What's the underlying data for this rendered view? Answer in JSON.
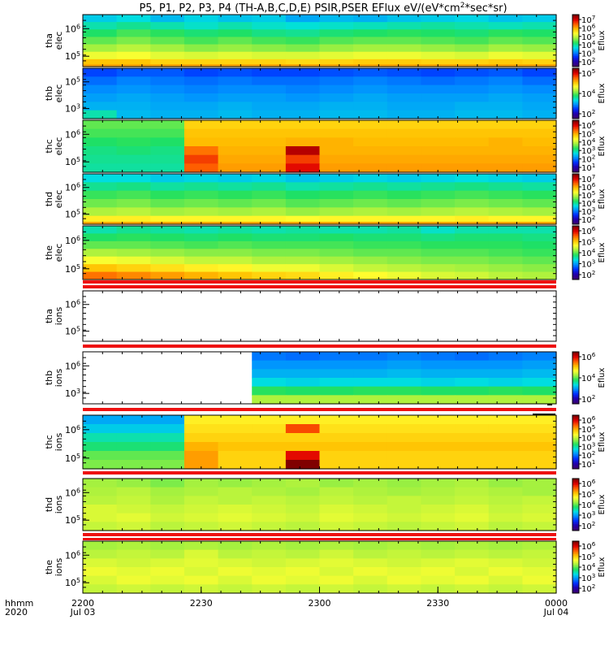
{
  "title": "P5, P1, P2, P3, P4 (TH-A,B,C,D,E) PSIR,PSER EFlux eV/(eV*cm",
  "title_sup": "2",
  "title_end": "*sec*sr)",
  "time_axis": {
    "corner_top": "hhmm",
    "corner_bottom": "2020",
    "ticks": [
      {
        "label": "2200",
        "date": "Jul 03"
      },
      {
        "label": "2230",
        "date": ""
      },
      {
        "label": "2300",
        "date": ""
      },
      {
        "label": "2330",
        "date": ""
      },
      {
        "label": "0000",
        "date": "Jul 04"
      }
    ]
  },
  "colorbar_label": "Eflux",
  "colors": {
    "red_band": "#ee1111",
    "colormap": [
      "#3a0070",
      "#2000b0",
      "#0030ff",
      "#0090ff",
      "#00e0e0",
      "#20e060",
      "#a0f040",
      "#ffff30",
      "#ffc000",
      "#ff6000",
      "#e00000",
      "#800000"
    ]
  },
  "chart_data": {
    "type": "heatmap",
    "x_range": [
      "2200",
      "0000"
    ],
    "panels": [
      {
        "name": "tha elec",
        "label1": "tha",
        "label2": "elec",
        "yticks": [
          "10^6",
          "10^5"
        ],
        "cbar_ticks": [
          "10^7",
          "10^6",
          "10^5",
          "10^4",
          "10^3",
          "10^2"
        ],
        "rows": [
          [
            0.34,
            0.36,
            0.32,
            0.35,
            0.33,
            0.34,
            0.3,
            0.32,
            0.31,
            0.33,
            0.34,
            0.35,
            0.33,
            0.34
          ],
          [
            0.4,
            0.42,
            0.4,
            0.38,
            0.4,
            0.38,
            0.37,
            0.38,
            0.39,
            0.4,
            0.41,
            0.4,
            0.39,
            0.4
          ],
          [
            0.45,
            0.48,
            0.46,
            0.44,
            0.45,
            0.43,
            0.42,
            0.44,
            0.45,
            0.46,
            0.45,
            0.44,
            0.46,
            0.45
          ],
          [
            0.5,
            0.52,
            0.5,
            0.48,
            0.5,
            0.48,
            0.47,
            0.49,
            0.5,
            0.5,
            0.49,
            0.48,
            0.5,
            0.49
          ],
          [
            0.55,
            0.57,
            0.55,
            0.53,
            0.54,
            0.53,
            0.52,
            0.54,
            0.55,
            0.55,
            0.54,
            0.53,
            0.55,
            0.54
          ],
          [
            0.62,
            0.63,
            0.61,
            0.6,
            0.61,
            0.6,
            0.6,
            0.61,
            0.62,
            0.62,
            0.61,
            0.6,
            0.62,
            0.61
          ],
          [
            0.72,
            0.72,
            0.7,
            0.7,
            0.7,
            0.7,
            0.69,
            0.7,
            0.71,
            0.71,
            0.7,
            0.7,
            0.71,
            0.7
          ]
        ],
        "bottom_line": 0.75
      },
      {
        "name": "thb elec",
        "label1": "thb",
        "label2": "elec",
        "yticks": [
          "10^5",
          "10^3"
        ],
        "cbar_ticks": [
          "10^5",
          "10^4",
          "10^2"
        ],
        "rows": [
          [
            0.2,
            0.22,
            0.22,
            0.2,
            0.21,
            0.2,
            0.2,
            0.21,
            0.22,
            0.21,
            0.2,
            0.21,
            0.22,
            0.2
          ],
          [
            0.24,
            0.26,
            0.25,
            0.24,
            0.25,
            0.24,
            0.24,
            0.25,
            0.26,
            0.25,
            0.24,
            0.25,
            0.26,
            0.24
          ],
          [
            0.27,
            0.28,
            0.27,
            0.26,
            0.27,
            0.27,
            0.26,
            0.27,
            0.28,
            0.27,
            0.27,
            0.27,
            0.28,
            0.27
          ],
          [
            0.29,
            0.3,
            0.29,
            0.28,
            0.29,
            0.29,
            0.28,
            0.29,
            0.3,
            0.29,
            0.29,
            0.29,
            0.3,
            0.29
          ],
          [
            0.31,
            0.31,
            0.3,
            0.3,
            0.31,
            0.3,
            0.3,
            0.31,
            0.31,
            0.3,
            0.3,
            0.31,
            0.31,
            0.3
          ],
          [
            0.4,
            0.32,
            0.31,
            0.31,
            0.32,
            0.31,
            0.31,
            0.32,
            0.32,
            0.31,
            0.31,
            0.32,
            0.32,
            0.31
          ]
        ]
      },
      {
        "name": "thc elec",
        "label1": "thc",
        "label2": "elec",
        "yticks": [
          "10^6",
          "10^5"
        ],
        "cbar_ticks": [
          "10^6",
          "10^5",
          "10^4",
          "10^3",
          "10^2",
          "10^1"
        ],
        "rows": [
          [
            0.5,
            0.5,
            0.5,
            0.7,
            0.7,
            0.7,
            0.7,
            0.7,
            0.7,
            0.7,
            0.7,
            0.7,
            0.7,
            0.7
          ],
          [
            0.48,
            0.48,
            0.48,
            0.72,
            0.72,
            0.72,
            0.72,
            0.72,
            0.72,
            0.72,
            0.72,
            0.72,
            0.72,
            0.72
          ],
          [
            0.45,
            0.46,
            0.45,
            0.73,
            0.73,
            0.73,
            0.74,
            0.74,
            0.73,
            0.73,
            0.73,
            0.73,
            0.74,
            0.73
          ],
          [
            0.43,
            0.44,
            0.43,
            0.8,
            0.74,
            0.74,
            0.95,
            0.74,
            0.74,
            0.74,
            0.74,
            0.74,
            0.74,
            0.74
          ],
          [
            0.42,
            0.42,
            0.42,
            0.85,
            0.75,
            0.75,
            0.85,
            0.75,
            0.75,
            0.75,
            0.75,
            0.75,
            0.75,
            0.75
          ],
          [
            0.41,
            0.41,
            0.41,
            0.82,
            0.76,
            0.76,
            0.9,
            0.76,
            0.76,
            0.76,
            0.76,
            0.76,
            0.76,
            0.76
          ]
        ]
      },
      {
        "name": "thd elec",
        "label1": "thd",
        "label2": "elec",
        "yticks": [
          "10^6",
          "10^5"
        ],
        "cbar_ticks": [
          "10^7",
          "10^6",
          "10^5",
          "10^4",
          "10^3",
          "10^2"
        ],
        "rows": [
          [
            0.36,
            0.36,
            0.34,
            0.35,
            0.34,
            0.35,
            0.33,
            0.34,
            0.35,
            0.34,
            0.35,
            0.36,
            0.35,
            0.34
          ],
          [
            0.42,
            0.43,
            0.41,
            0.42,
            0.41,
            0.42,
            0.4,
            0.41,
            0.42,
            0.41,
            0.42,
            0.43,
            0.42,
            0.41
          ],
          [
            0.47,
            0.48,
            0.46,
            0.47,
            0.46,
            0.47,
            0.45,
            0.46,
            0.47,
            0.46,
            0.47,
            0.48,
            0.47,
            0.46
          ],
          [
            0.51,
            0.52,
            0.5,
            0.51,
            0.5,
            0.51,
            0.49,
            0.5,
            0.51,
            0.5,
            0.51,
            0.52,
            0.51,
            0.5
          ],
          [
            0.56,
            0.57,
            0.55,
            0.56,
            0.55,
            0.56,
            0.54,
            0.55,
            0.56,
            0.55,
            0.56,
            0.57,
            0.56,
            0.55
          ],
          [
            0.66,
            0.66,
            0.65,
            0.65,
            0.65,
            0.65,
            0.64,
            0.65,
            0.65,
            0.65,
            0.65,
            0.66,
            0.65,
            0.65
          ]
        ],
        "bottom_line": 0.75
      },
      {
        "name": "the elec",
        "label1": "the",
        "label2": "elec",
        "yticks": [
          "10^6",
          "10^5"
        ],
        "cbar_ticks": [
          "10^6",
          "10^5",
          "10^4",
          "10^3",
          "10^2"
        ],
        "rows": [
          [
            0.4,
            0.42,
            0.41,
            0.4,
            0.41,
            0.4,
            0.41,
            0.4,
            0.4,
            0.41,
            0.38,
            0.4,
            0.4,
            0.4
          ],
          [
            0.45,
            0.46,
            0.45,
            0.44,
            0.45,
            0.44,
            0.44,
            0.45,
            0.44,
            0.44,
            0.43,
            0.44,
            0.44,
            0.43
          ],
          [
            0.5,
            0.5,
            0.49,
            0.48,
            0.49,
            0.48,
            0.48,
            0.48,
            0.47,
            0.47,
            0.46,
            0.46,
            0.46,
            0.45
          ],
          [
            0.56,
            0.55,
            0.54,
            0.53,
            0.53,
            0.52,
            0.52,
            0.51,
            0.5,
            0.5,
            0.49,
            0.49,
            0.48,
            0.47
          ],
          [
            0.63,
            0.62,
            0.6,
            0.58,
            0.58,
            0.56,
            0.56,
            0.55,
            0.54,
            0.53,
            0.52,
            0.52,
            0.51,
            0.5
          ],
          [
            0.72,
            0.7,
            0.68,
            0.66,
            0.65,
            0.62,
            0.62,
            0.6,
            0.58,
            0.57,
            0.56,
            0.55,
            0.54,
            0.53
          ],
          [
            0.8,
            0.78,
            0.76,
            0.74,
            0.72,
            0.7,
            0.69,
            0.66,
            0.64,
            0.62,
            0.6,
            0.59,
            0.57,
            0.56
          ]
        ]
      },
      {
        "name": "tha ions",
        "label1": "tha",
        "label2": "ions",
        "yticks": [
          "10^6",
          "10^5"
        ],
        "cbar_ticks": [],
        "empty": true
      },
      {
        "name": "thb ions",
        "label1": "thb",
        "label2": "ions",
        "yticks": [
          "10^6",
          "10^3"
        ],
        "cbar_ticks": [
          "10^6",
          "10^4",
          "10^2"
        ],
        "rows": [
          [
            null,
            null,
            null,
            null,
            null,
            0.25,
            0.24,
            0.25,
            0.25,
            0.26,
            0.25,
            0.24,
            0.25,
            0.26
          ],
          [
            null,
            null,
            null,
            null,
            null,
            0.28,
            0.28,
            0.28,
            0.28,
            0.29,
            0.28,
            0.28,
            0.28,
            0.29
          ],
          [
            null,
            null,
            null,
            null,
            null,
            0.31,
            0.31,
            0.31,
            0.31,
            0.32,
            0.31,
            0.31,
            0.31,
            0.32
          ],
          [
            null,
            null,
            null,
            null,
            null,
            0.36,
            0.35,
            0.36,
            0.36,
            0.36,
            0.35,
            0.36,
            0.35,
            0.36
          ],
          [
            null,
            null,
            null,
            null,
            null,
            0.46,
            0.45,
            0.45,
            0.46,
            0.46,
            0.45,
            0.45,
            0.46,
            0.45
          ],
          [
            null,
            null,
            null,
            null,
            null,
            0.56,
            0.56,
            0.56,
            0.56,
            0.56,
            0.56,
            0.56,
            0.56,
            0.56
          ]
        ]
      },
      {
        "name": "thc ions",
        "label1": "thc",
        "label2": "ions",
        "yticks": [
          "10^6",
          "10^5"
        ],
        "cbar_ticks": [
          "10^6",
          "10^5",
          "10^4",
          "10^3",
          "10^2",
          "10^1"
        ],
        "rows": [
          [
            0.3,
            0.3,
            0.3,
            0.66,
            0.66,
            0.66,
            0.66,
            0.66,
            0.66,
            0.66,
            0.66,
            0.66,
            0.66,
            0.66
          ],
          [
            0.34,
            0.34,
            0.34,
            0.68,
            0.68,
            0.68,
            0.84,
            0.68,
            0.68,
            0.68,
            0.68,
            0.68,
            0.68,
            0.68
          ],
          [
            0.4,
            0.4,
            0.4,
            0.7,
            0.7,
            0.7,
            0.7,
            0.7,
            0.7,
            0.7,
            0.7,
            0.7,
            0.7,
            0.7
          ],
          [
            0.44,
            0.44,
            0.44,
            0.74,
            0.72,
            0.72,
            0.72,
            0.72,
            0.72,
            0.72,
            0.72,
            0.72,
            0.72,
            0.72
          ],
          [
            0.5,
            0.5,
            0.5,
            0.76,
            0.7,
            0.7,
            0.9,
            0.7,
            0.7,
            0.7,
            0.7,
            0.7,
            0.7,
            0.7
          ],
          [
            0.52,
            0.52,
            0.52,
            0.76,
            0.7,
            0.7,
            1.0,
            0.7,
            0.7,
            0.7,
            0.7,
            0.7,
            0.7,
            0.7
          ]
        ]
      },
      {
        "name": "thd ions",
        "label1": "thd",
        "label2": "ions",
        "yticks": [
          "10^6",
          "10^5"
        ],
        "cbar_ticks": [
          "10^6",
          "10^5",
          "10^4",
          "10^3",
          "10^2"
        ],
        "rows": [
          [
            0.55,
            0.54,
            0.52,
            0.55,
            0.54,
            0.55,
            0.56,
            0.54,
            0.55,
            0.54,
            0.55,
            0.56,
            0.54,
            0.55
          ],
          [
            0.56,
            0.57,
            0.55,
            0.56,
            0.57,
            0.56,
            0.55,
            0.57,
            0.56,
            0.55,
            0.56,
            0.57,
            0.56,
            0.55
          ],
          [
            0.57,
            0.58,
            0.56,
            0.58,
            0.57,
            0.58,
            0.57,
            0.58,
            0.57,
            0.58,
            0.57,
            0.58,
            0.57,
            0.58
          ],
          [
            0.6,
            0.59,
            0.58,
            0.59,
            0.6,
            0.59,
            0.58,
            0.6,
            0.59,
            0.58,
            0.59,
            0.6,
            0.58,
            0.59
          ],
          [
            0.6,
            0.61,
            0.59,
            0.6,
            0.61,
            0.6,
            0.59,
            0.61,
            0.6,
            0.59,
            0.6,
            0.61,
            0.59,
            0.6
          ],
          [
            0.58,
            0.59,
            0.57,
            0.58,
            0.59,
            0.58,
            0.57,
            0.59,
            0.58,
            0.57,
            0.58,
            0.59,
            0.57,
            0.58
          ]
        ]
      },
      {
        "name": "the ions",
        "label1": "the",
        "label2": "ions",
        "yticks": [
          "10^6",
          "10^5"
        ],
        "cbar_ticks": [
          "10^6",
          "10^5",
          "10^4",
          "10^3",
          "10^2"
        ],
        "rows": [
          [
            0.55,
            0.56,
            0.55,
            0.56,
            0.55,
            0.56,
            0.55,
            0.56,
            0.55,
            0.56,
            0.55,
            0.56,
            0.55,
            0.56
          ],
          [
            0.57,
            0.58,
            0.57,
            0.6,
            0.57,
            0.58,
            0.57,
            0.59,
            0.57,
            0.58,
            0.57,
            0.58,
            0.57,
            0.58
          ],
          [
            0.6,
            0.59,
            0.6,
            0.61,
            0.6,
            0.59,
            0.6,
            0.61,
            0.6,
            0.59,
            0.6,
            0.61,
            0.6,
            0.59
          ],
          [
            0.62,
            0.61,
            0.62,
            0.6,
            0.62,
            0.61,
            0.62,
            0.6,
            0.62,
            0.61,
            0.62,
            0.6,
            0.62,
            0.61
          ],
          [
            0.6,
            0.62,
            0.61,
            0.62,
            0.6,
            0.62,
            0.61,
            0.62,
            0.6,
            0.62,
            0.61,
            0.62,
            0.6,
            0.62
          ],
          [
            0.58,
            0.59,
            0.58,
            0.59,
            0.58,
            0.59,
            0.58,
            0.59,
            0.58,
            0.59,
            0.58,
            0.59,
            0.58,
            0.59
          ]
        ]
      }
    ]
  }
}
